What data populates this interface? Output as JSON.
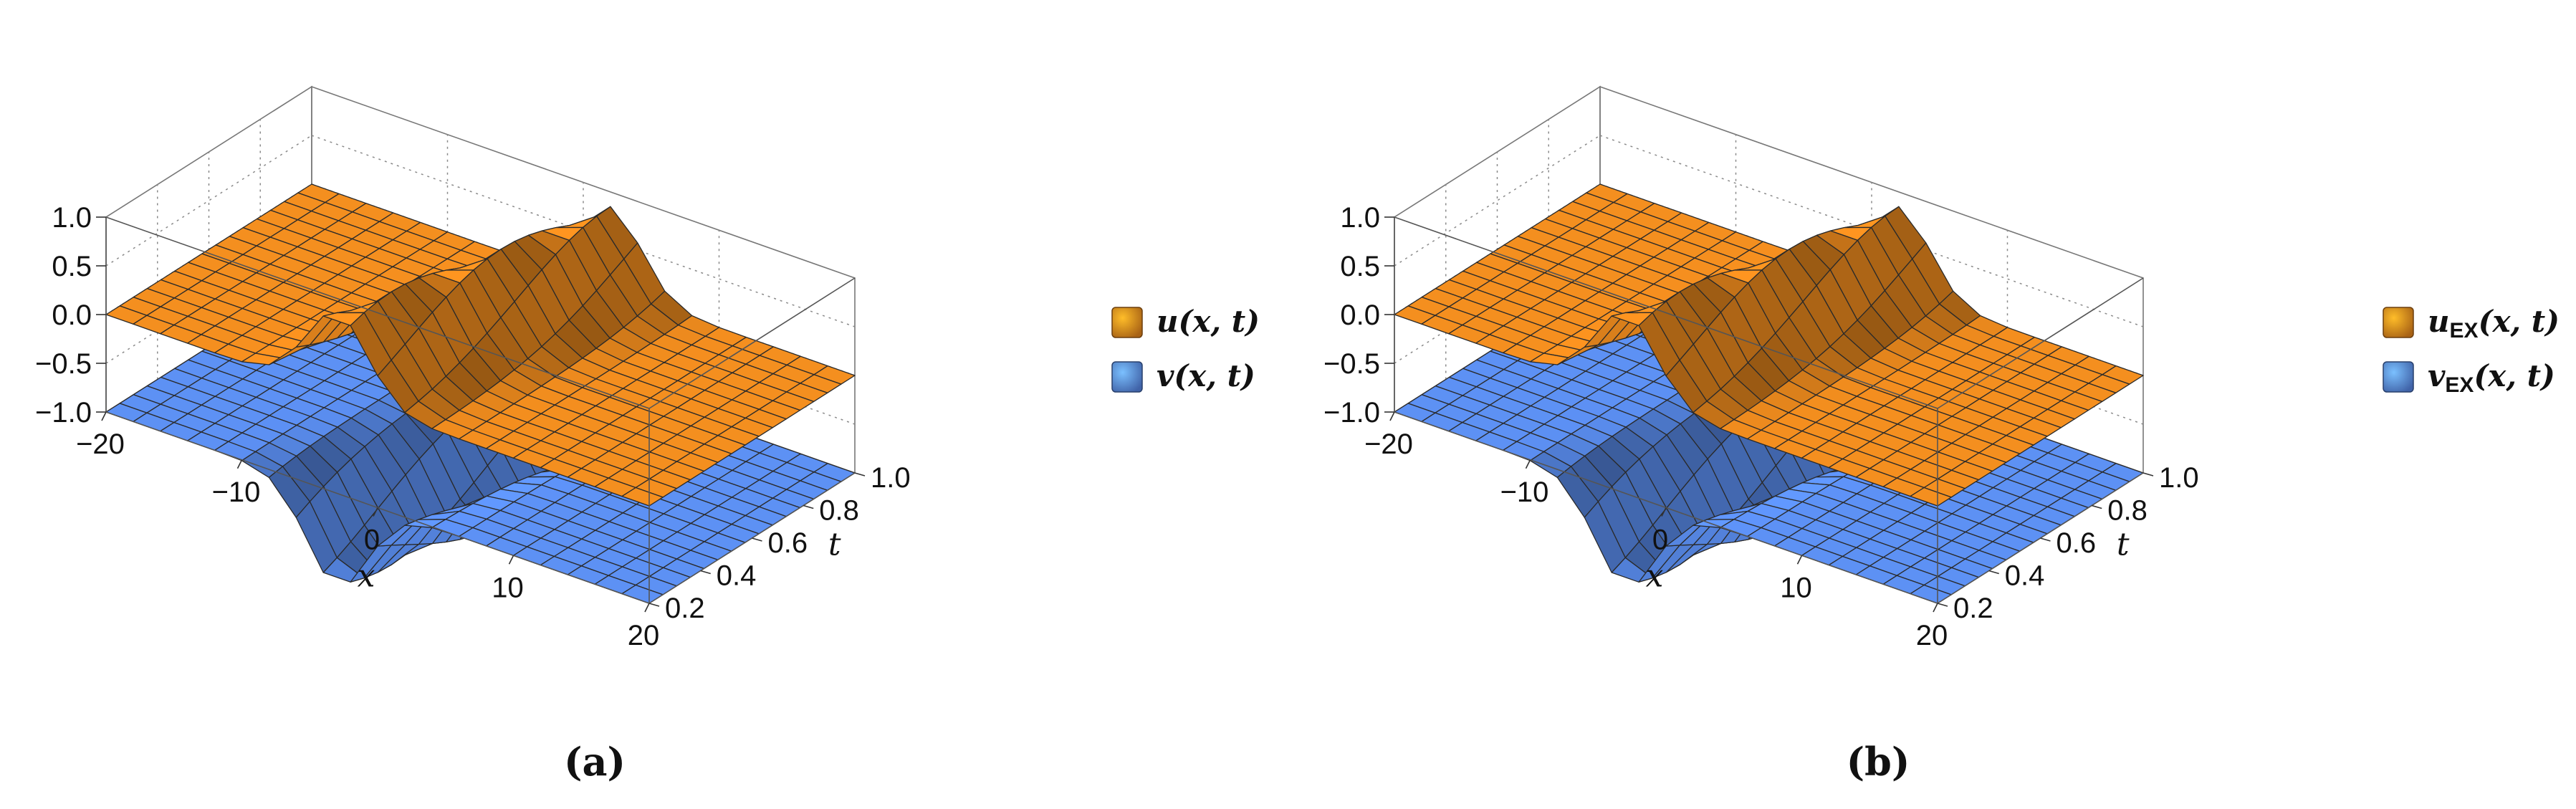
{
  "chart_data": [
    {
      "type": "surface3d",
      "caption": "(a)",
      "axes": {
        "x": {
          "label": "x",
          "range": [
            -20,
            20
          ],
          "ticks": [
            "-20",
            "-10",
            "0",
            "10",
            "20"
          ]
        },
        "t": {
          "label": "t",
          "range": [
            0.2,
            1.0
          ],
          "ticks": [
            "0.2",
            "0.4",
            "0.6",
            "0.8",
            "1.0"
          ]
        },
        "z": {
          "range": [
            -1.0,
            1.0
          ],
          "ticks": [
            "-1.0",
            "-0.5",
            "0.0",
            "0.5",
            "1.0"
          ]
        }
      },
      "series": [
        {
          "name": "u(x, t)",
          "label_main": "u",
          "label_sub": "",
          "label_args": "(x, t)",
          "color": "#f08c1e",
          "baseline": 0.0,
          "amplitude": 0.85
        },
        {
          "name": "v(x, t)",
          "label_main": "v",
          "label_sub": "",
          "label_args": "(x, t)",
          "color": "#5b8ef0",
          "baseline": -1.0,
          "amplitude": -0.95
        }
      ],
      "feature_center": {
        "x_at_t0.2": -3,
        "x_at_t1.0": 2
      },
      "box": "on",
      "grid": "dotted",
      "legend": "right"
    },
    {
      "type": "surface3d",
      "caption": "(b)",
      "axes": {
        "x": {
          "label": "x",
          "range": [
            -20,
            20
          ],
          "ticks": [
            "-20",
            "-10",
            "0",
            "10",
            "20"
          ]
        },
        "t": {
          "label": "t",
          "range": [
            0.2,
            1.0
          ],
          "ticks": [
            "0.2",
            "0.4",
            "0.6",
            "0.8",
            "1.0"
          ]
        },
        "z": {
          "range": [
            -1.0,
            1.0
          ],
          "ticks": [
            "-1.0",
            "-0.5",
            "0.0",
            "0.5",
            "1.0"
          ]
        }
      },
      "series": [
        {
          "name": "uEX(x, t)",
          "label_main": "u",
          "label_sub": "EX",
          "label_args": "(x, t)",
          "color": "#f08c1e",
          "baseline": 0.0,
          "amplitude": 0.85
        },
        {
          "name": "vEX(x, t)",
          "label_main": "v",
          "label_sub": "EX",
          "label_args": "(x, t)",
          "color": "#5b8ef0",
          "baseline": -1.0,
          "amplitude": -0.95
        }
      ],
      "feature_center": {
        "x_at_t0.2": -3,
        "x_at_t1.0": 2
      },
      "box": "on",
      "grid": "dotted",
      "legend": "right"
    }
  ]
}
